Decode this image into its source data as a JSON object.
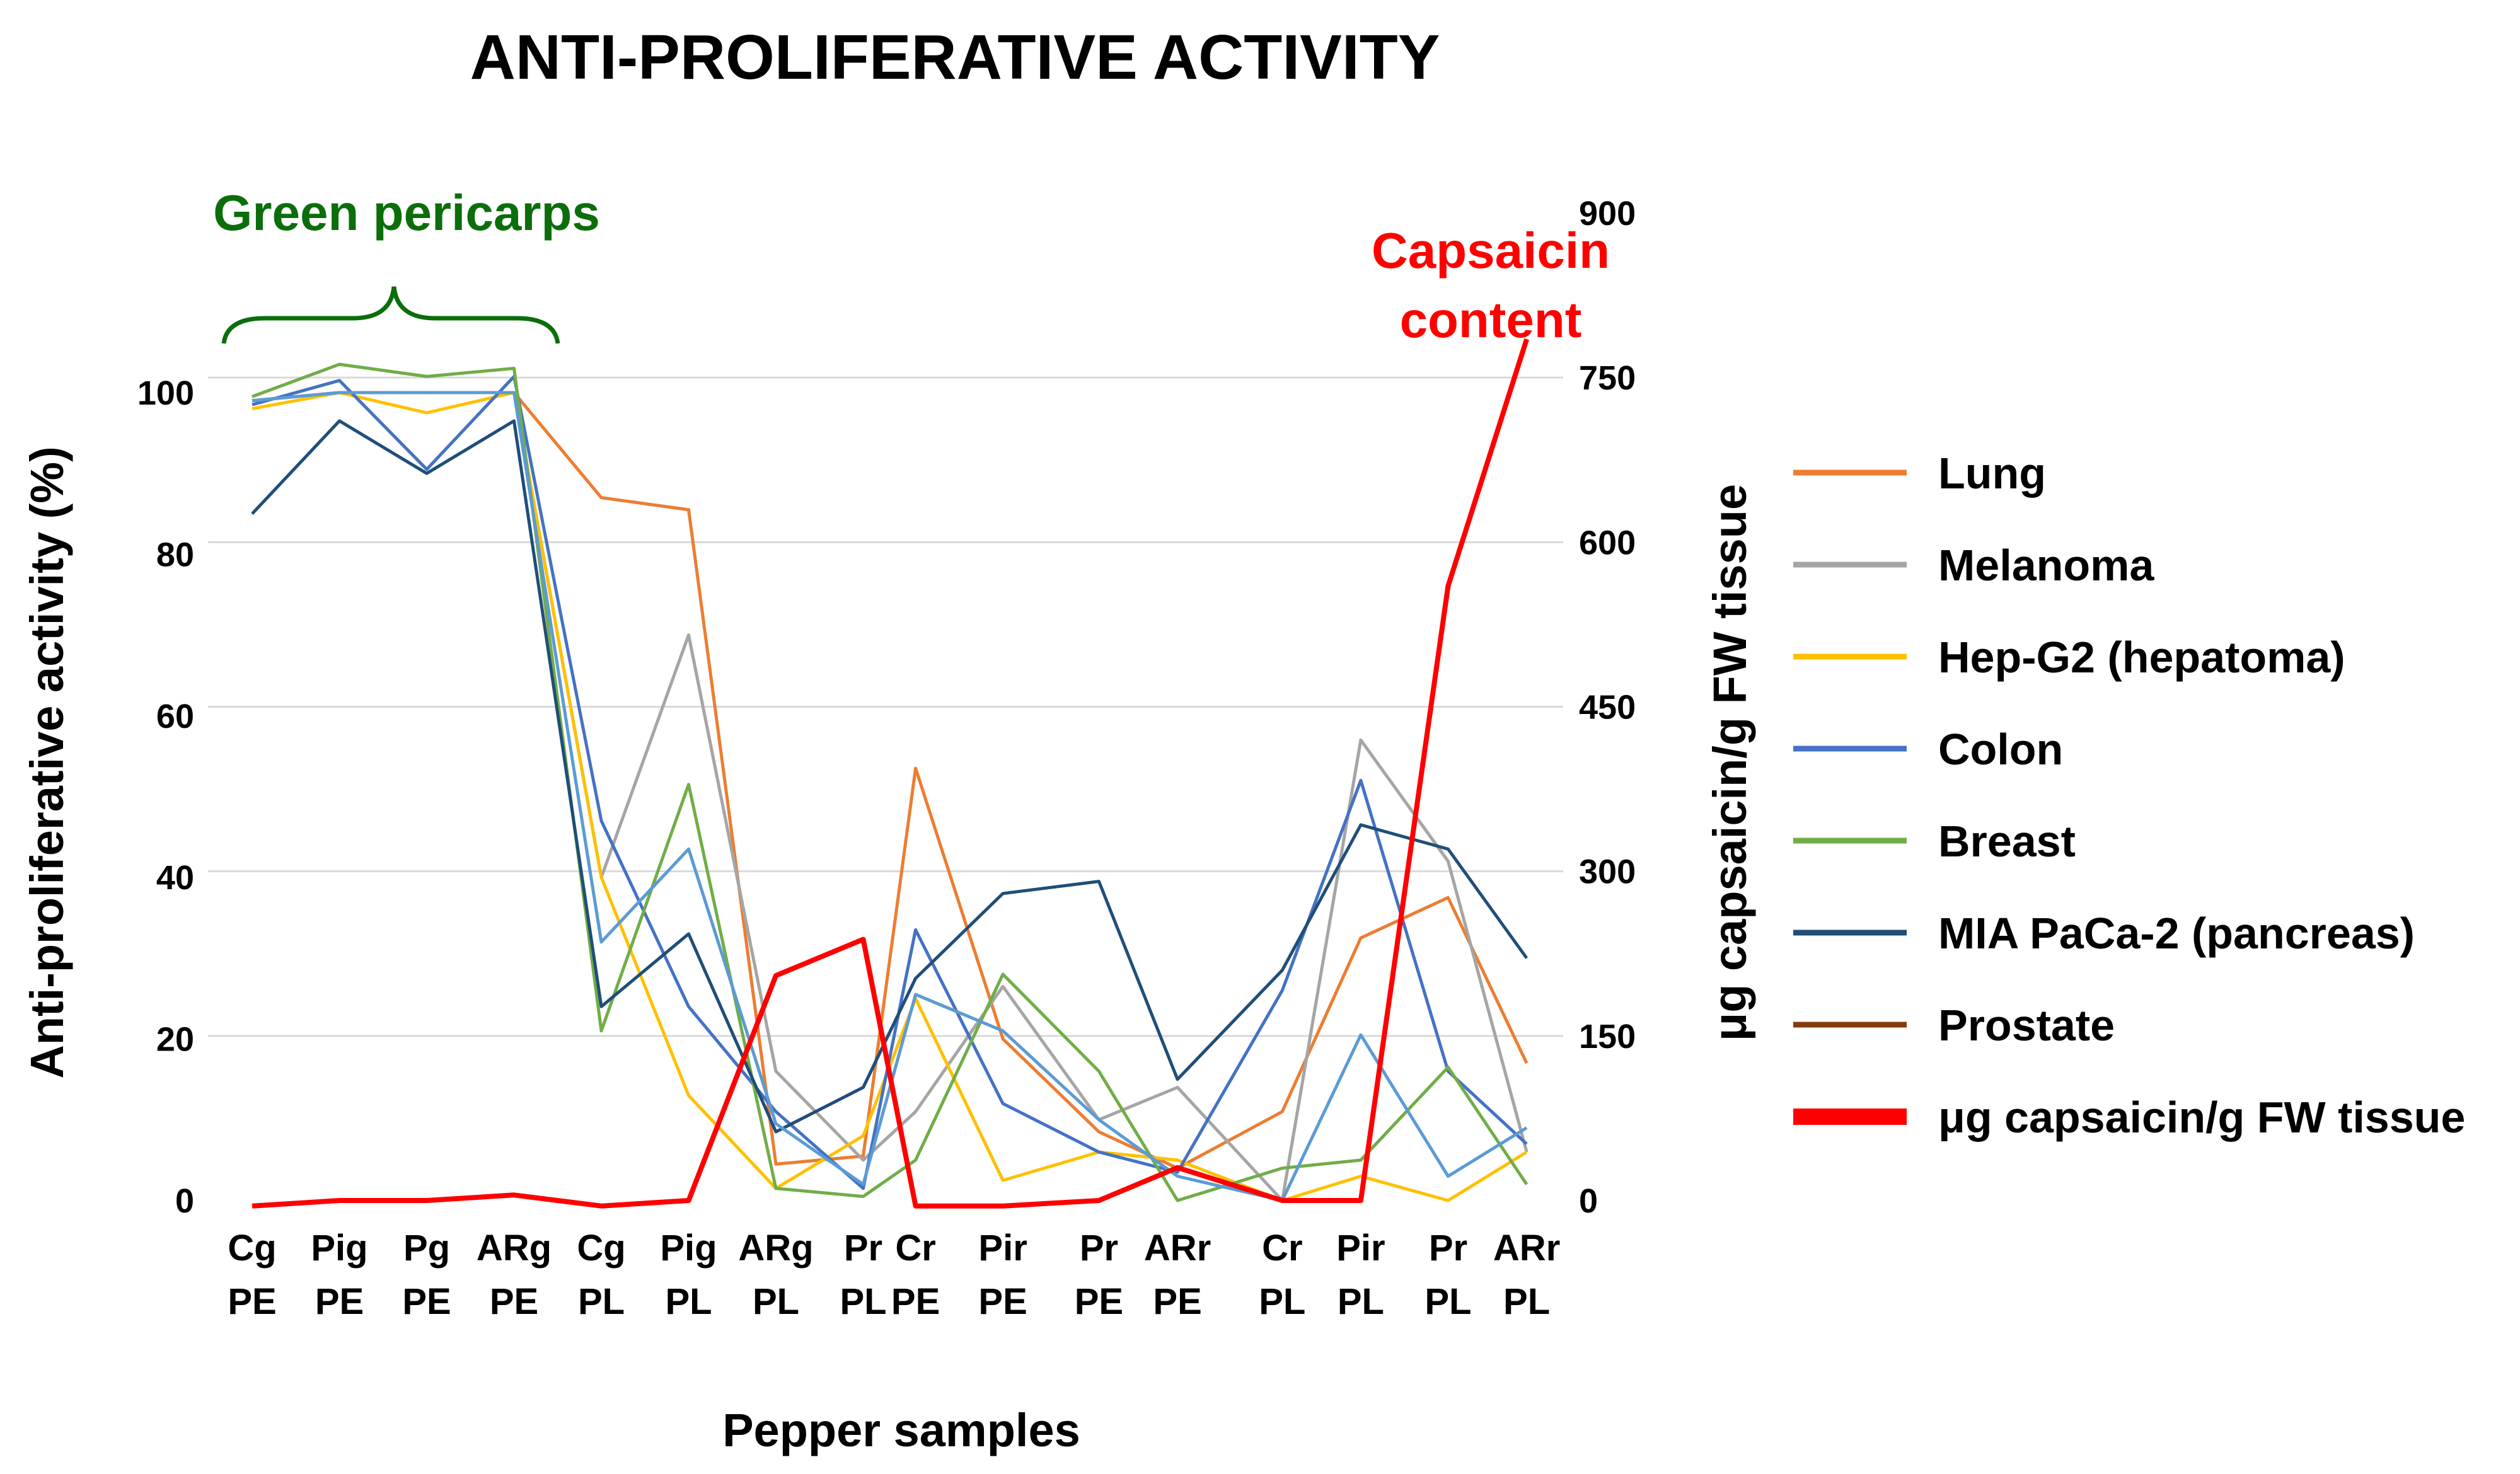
{
  "chart_data": {
    "type": "line",
    "title": "ANTI-PROLIFERATIVE ACTIVITY",
    "xlabel": "Pepper samples",
    "ylabel": "Anti-proliferative activity (%)",
    "y2label": "μg capsaicin/g FW tissue",
    "ylim": [
      0,
      100
    ],
    "y2lim": [
      0,
      900
    ],
    "yticks": [
      "0",
      "20",
      "40",
      "60",
      "80",
      "100"
    ],
    "y2ticks": [
      "0",
      "150",
      "300",
      "450",
      "600",
      "750",
      "900"
    ],
    "categories": [
      [
        "Cg",
        "PE"
      ],
      [
        "Pig",
        "PE"
      ],
      [
        "Pg",
        "PE"
      ],
      [
        "ARg",
        "PE"
      ],
      [
        "Cg",
        "PL"
      ],
      [
        "Pig",
        "PL"
      ],
      [
        "ARg",
        "PL"
      ],
      [
        "Pr",
        "PL"
      ],
      [
        "Cr",
        "PE"
      ],
      [
        "Pir",
        "PE"
      ],
      [
        "Pr",
        "PE"
      ],
      [
        "ARr",
        "PE"
      ],
      [
        "Cr",
        "PL"
      ],
      [
        "Pir",
        "PL"
      ],
      [
        "Pr",
        "PL"
      ],
      [
        "ARr",
        "PL"
      ]
    ],
    "x_positions": [
      1,
      2,
      3,
      4,
      5,
      6,
      7,
      8,
      8.6,
      9.6,
      10.7,
      11.6,
      12.8,
      13.7,
      14.7,
      15.6
    ],
    "series": [
      {
        "name": "Lung",
        "color": "#ED7D31",
        "values": [
          99,
          100,
          100,
          100,
          87,
          85.5,
          4.5,
          5.5,
          53.5,
          20,
          8.5,
          4,
          11,
          32.5,
          37.5,
          17
        ]
      },
      {
        "name": "Melanoma",
        "color": "#A5A5A5",
        "values": [
          99,
          100,
          100,
          100,
          40,
          70,
          16,
          5,
          11,
          26.5,
          10,
          14,
          0,
          57,
          42,
          6
        ]
      },
      {
        "name": "Hep-G2 (hepatoma)",
        "color": "#FFC000",
        "values": [
          98,
          100,
          97.5,
          100,
          40,
          13,
          1.5,
          8,
          25,
          2.5,
          6,
          5,
          0,
          3,
          0,
          6
        ]
      },
      {
        "name": "Colon",
        "color": "#4472C4",
        "values": [
          98.5,
          101.5,
          90.5,
          102,
          47,
          24,
          11,
          1.5,
          33.5,
          12,
          6,
          3.5,
          26,
          52,
          16,
          7
        ]
      },
      {
        "name": "Breast",
        "color": "#70AD47",
        "values": [
          99.5,
          103.5,
          102,
          103,
          21,
          51.5,
          1.5,
          0.5,
          5,
          28,
          16,
          0,
          4,
          5,
          16.5,
          2
        ]
      },
      {
        "name": "MIA PaCa-2 (pancreas)",
        "color": "#1F4E79",
        "values": [
          85,
          96.5,
          90,
          96.5,
          24,
          33,
          8.5,
          14,
          27.5,
          38,
          39.5,
          15,
          28.5,
          46.5,
          43.5,
          30
        ]
      },
      {
        "name": "Prostate",
        "color": "#5B9BD5",
        "legend_color": "#843C0C",
        "values": [
          99,
          100,
          100,
          100,
          32,
          43.5,
          9.5,
          2,
          25.5,
          21,
          10,
          3,
          0,
          20.5,
          3,
          9
        ]
      }
    ],
    "capsaicin": {
      "name": "μg capsaicin/g FW tissue",
      "color": "#FF0000",
      "values": [
        -5,
        0,
        0,
        5,
        -5,
        0,
        205,
        238,
        -5,
        -5,
        0,
        30,
        0,
        0,
        560,
        785
      ]
    },
    "annotations": {
      "green_label": "Green pericarps",
      "capsaicin_label": [
        "Capsaicin",
        "content"
      ]
    },
    "legend": {
      "items": [
        "Lung",
        "Melanoma",
        "Hep-G2 (hepatoma)",
        "Colon",
        "Breast",
        "MIA PaCa-2 (pancreas)",
        "Prostate",
        "μg capsaicin/g  FW tissue"
      ],
      "colors": [
        "#ED7D31",
        "#A5A5A5",
        "#FFC000",
        "#4472C4",
        "#70AD47",
        "#1F4E79",
        "#843C0C",
        "#FF0000"
      ]
    },
    "grid": true
  }
}
